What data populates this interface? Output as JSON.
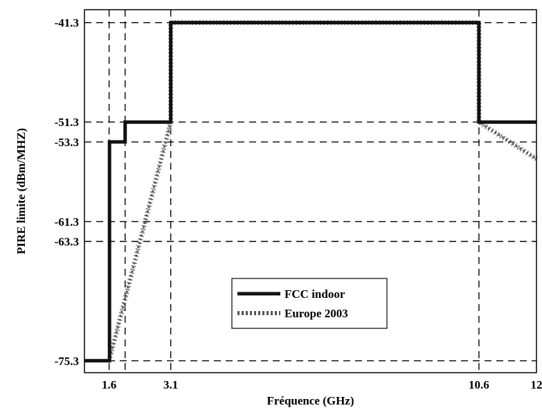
{
  "chart_data": {
    "type": "line",
    "title": "",
    "xlabel": "Fréquence (GHz)",
    "ylabel": "PIRE limite (dBm/MHZ)",
    "xlim": [
      1.0,
      12.0
    ],
    "ylim": [
      -76.5,
      -40.0
    ],
    "xticks": [
      1.6,
      3.1,
      10.6,
      12
    ],
    "xtick_labels": [
      "1.6",
      "3.1",
      "10.6",
      "12"
    ],
    "yticks": [
      -41.3,
      -51.3,
      -53.3,
      -61.3,
      -63.3,
      -75.3
    ],
    "ytick_labels": [
      "-41.3",
      "-51.3",
      "-53.3",
      "-61.3",
      "-63.3",
      "-75.3"
    ],
    "grid_x": [
      1.6,
      1.99,
      3.1,
      10.6
    ],
    "grid_y": [
      -41.3,
      -51.3,
      -53.3,
      -61.3,
      -63.3,
      -75.3
    ],
    "grid": "dashed",
    "legend": "center",
    "series": [
      {
        "name": "FCC indoor",
        "style": "solid",
        "color": "#111111",
        "x": [
          1.0,
          1.61,
          1.61,
          1.99,
          1.99,
          3.1,
          3.1,
          10.6,
          10.6,
          12.0
        ],
        "y": [
          -75.3,
          -75.3,
          -53.3,
          -53.3,
          -51.3,
          -51.3,
          -41.3,
          -41.3,
          -51.3,
          -51.3
        ]
      },
      {
        "name": "Europe 2003",
        "style": "dotted",
        "color": "#555555",
        "x": [
          1.6,
          3.1,
          3.1,
          10.6,
          10.6,
          12.0
        ],
        "y": [
          -75.3,
          -51.3,
          -41.3,
          -41.3,
          -51.3,
          -55.0
        ]
      }
    ]
  }
}
